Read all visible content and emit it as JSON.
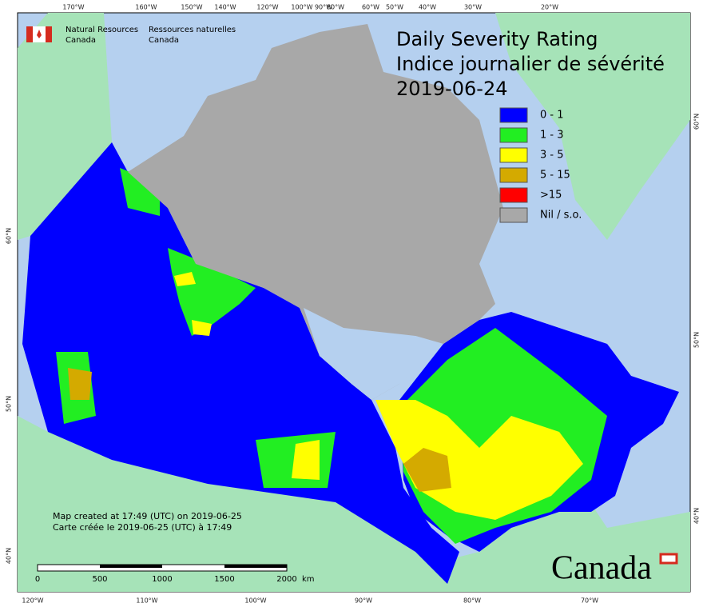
{
  "header": {
    "agency_en": [
      "Natural Resources",
      "Canada"
    ],
    "agency_fr": [
      "Ressources naturelles",
      "Canada"
    ]
  },
  "title": {
    "lines": [
      "Daily Severity Rating",
      "Indice journalier de sévérité",
      "2019-06-24"
    ]
  },
  "legend": {
    "items": [
      {
        "label": "0 - 1",
        "color": "#0000ff"
      },
      {
        "label": "1 - 3",
        "color": "#22ee22"
      },
      {
        "label": "3 - 5",
        "color": "#ffff00"
      },
      {
        "label": "5 - 15",
        "color": "#d4aa00"
      },
      {
        "label": ">15",
        "color": "#ff0000"
      },
      {
        "label": "Nil / s.o.",
        "color": "#a8a8a8"
      }
    ]
  },
  "graticule": {
    "top": [
      "170°W",
      "160°W",
      "150°W",
      "140°W",
      "120°W",
      "100°W",
      "90°W",
      "80°W",
      "60°W",
      "50°W",
      "40°W",
      "30°W",
      "20°W"
    ],
    "bottom": [
      "120°W",
      "110°W",
      "100°W",
      "90°W",
      "80°W",
      "70°W"
    ],
    "left": [
      "60°N",
      "50°N",
      "40°N"
    ],
    "right": [
      "60°N",
      "50°N",
      "40°N"
    ]
  },
  "notes": [
    "Map created at 17:49 (UTC) on 2019-06-25",
    "Carte créée le 2019-06-25 (UTC) à 17:49"
  ],
  "scale_bar": {
    "labels": [
      "0",
      "500",
      "1000",
      "1500",
      "2000"
    ],
    "unit": "km"
  },
  "wordmark": "Canada"
}
